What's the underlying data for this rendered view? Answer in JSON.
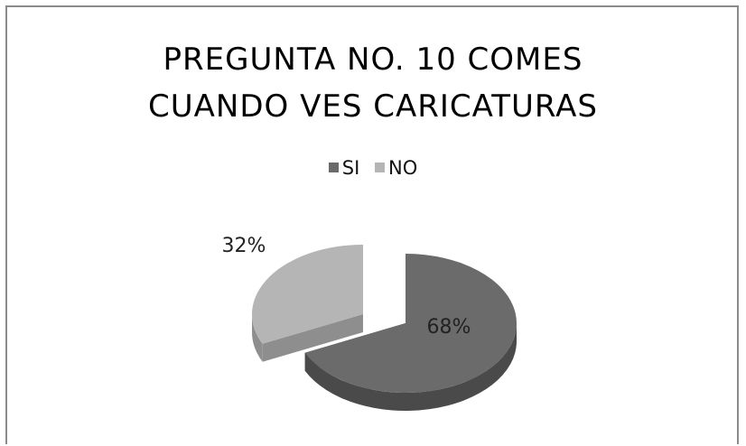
{
  "chart_data": {
    "type": "pie",
    "title_line1": "PREGUNTA NO. 10 COMES",
    "title_line2": "CUANDO VES CARICATURAS",
    "legend_position": "top",
    "three_d": true,
    "exploded": true,
    "series": [
      {
        "name": "SI",
        "value": 68,
        "label": "68%",
        "color": "#6b6b6b",
        "side_color": "#4a4a4a"
      },
      {
        "name": "NO",
        "value": 32,
        "label": "32%",
        "color": "#b5b5b5",
        "side_color": "#8e8e8e"
      }
    ]
  }
}
